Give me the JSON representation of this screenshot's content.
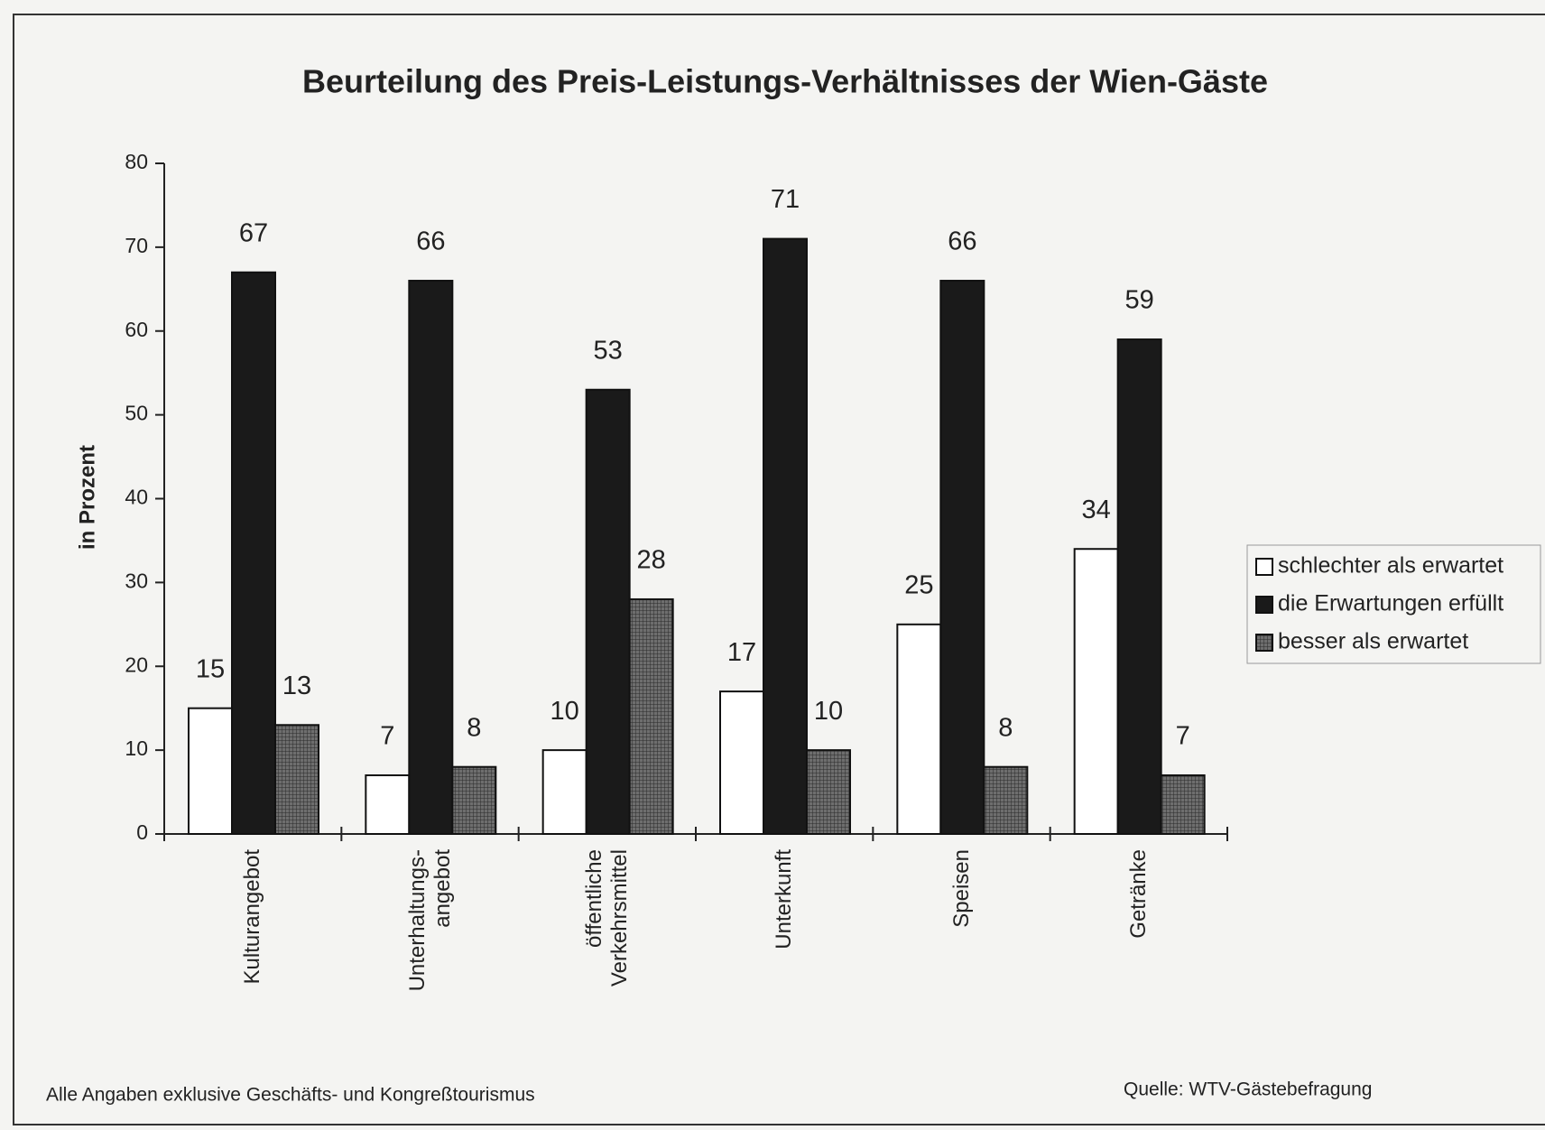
{
  "chart_data": {
    "type": "bar",
    "title": "Beurteilung des Preis-Leistungs-Verhältnisses der Wien-Gäste",
    "ylabel": "in Prozent",
    "categories": [
      "Kulturangebot",
      "Unterhaltungs-\nangebot",
      "öffentliche\nVerkehrsmittel",
      "Unterkunft",
      "Speisen",
      "Getränke"
    ],
    "series": [
      {
        "name": "schlechter als erwartet",
        "color": "#ffffff",
        "values": [
          15,
          7,
          10,
          17,
          25,
          34
        ]
      },
      {
        "name": "die Erwartungen erfüllt",
        "color": "#1a1a1a",
        "values": [
          67,
          66,
          53,
          71,
          66,
          59
        ]
      },
      {
        "name": "besser als erwartet",
        "color": "#6e6e6e",
        "values": [
          13,
          8,
          28,
          10,
          8,
          7
        ]
      }
    ],
    "ylim": [
      0,
      80
    ],
    "yticks": [
      0,
      10,
      20,
      30,
      40,
      50,
      60,
      70,
      80
    ],
    "legend": "right",
    "notes": [
      "Alle Angaben exklusive Geschäfts- und Kongreßtourismus",
      "Quelle: WTV-Gästebefragung"
    ]
  }
}
